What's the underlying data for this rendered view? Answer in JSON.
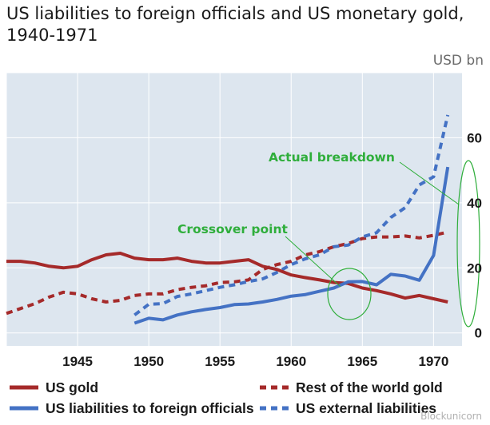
{
  "title": "US liabilities to foreign officials and US monetary gold, 1940-1971",
  "unit": "USD bn",
  "watermark": "Blockunicorn",
  "colors": {
    "plot_bg": "#dde6ef",
    "grid": "#ffffff",
    "red": "#a52a2a",
    "blue": "#4472c4",
    "annotation": "#2fae3b"
  },
  "chart_data": {
    "type": "line",
    "xlabel": "",
    "ylabel": "",
    "xlim": [
      1940,
      1972
    ],
    "ylim": [
      -4,
      80
    ],
    "x_ticks": [
      1945,
      1950,
      1955,
      1960,
      1965,
      1970
    ],
    "y_ticks": [
      0,
      20,
      40,
      60
    ],
    "grid": true,
    "legend_position": "bottom",
    "series": [
      {
        "name": "US gold",
        "style": "solid",
        "color": "#a52a2a",
        "x": [
          1940,
          1941,
          1942,
          1943,
          1944,
          1945,
          1946,
          1947,
          1948,
          1949,
          1950,
          1951,
          1952,
          1953,
          1954,
          1955,
          1956,
          1957,
          1958,
          1959,
          1960,
          1961,
          1962,
          1963,
          1964,
          1965,
          1966,
          1967,
          1968,
          1969,
          1970,
          1971
        ],
        "y": [
          22,
          22,
          21.5,
          20.5,
          20,
          20.5,
          22.5,
          24,
          24.5,
          23,
          22.5,
          22.5,
          23,
          22,
          21.5,
          21.5,
          22,
          22.5,
          20.5,
          19.5,
          17.8,
          17,
          16.3,
          15.5,
          15.2,
          13.8,
          13,
          12,
          10.7,
          11.5,
          10.5,
          9.5
        ]
      },
      {
        "name": "Rest of the world gold",
        "style": "dashed",
        "color": "#a52a2a",
        "x": [
          1940,
          1941,
          1942,
          1943,
          1944,
          1945,
          1946,
          1947,
          1948,
          1949,
          1950,
          1951,
          1952,
          1953,
          1954,
          1955,
          1956,
          1957,
          1958,
          1959,
          1960,
          1961,
          1962,
          1963,
          1964,
          1965,
          1966,
          1967,
          1968,
          1969,
          1970,
          1971
        ],
        "y": [
          6,
          7.5,
          9,
          11,
          12.5,
          12,
          10.5,
          9.5,
          10,
          11.5,
          12,
          12,
          13.3,
          14,
          14.5,
          15.5,
          15.7,
          16.3,
          19.5,
          21,
          22,
          24,
          25,
          26.5,
          27.5,
          29,
          29.5,
          29.5,
          29.8,
          29.2,
          30,
          31
        ]
      },
      {
        "name": "US liabilities to foreign officials",
        "style": "solid",
        "color": "#4472c4",
        "x": [
          1949,
          1950,
          1951,
          1952,
          1953,
          1954,
          1955,
          1956,
          1957,
          1958,
          1959,
          1960,
          1961,
          1962,
          1963,
          1964,
          1965,
          1966,
          1967,
          1968,
          1969,
          1970,
          1971
        ],
        "y": [
          3,
          4.5,
          4,
          5.5,
          6.5,
          7.2,
          7.8,
          8.7,
          8.9,
          9.5,
          10.3,
          11.3,
          11.8,
          12.8,
          13.8,
          15.7,
          15.8,
          14.8,
          18,
          17.5,
          16.2,
          23.8,
          51
        ]
      },
      {
        "name": "US external liabilities",
        "style": "dashed",
        "color": "#4472c4",
        "x": [
          1949,
          1950,
          1951,
          1952,
          1953,
          1954,
          1955,
          1956,
          1957,
          1958,
          1959,
          1960,
          1961,
          1962,
          1963,
          1964,
          1965,
          1966,
          1967,
          1968,
          1969,
          1970,
          1971
        ],
        "y": [
          5.5,
          8.8,
          9,
          11.2,
          12,
          13,
          14,
          14.8,
          15.8,
          16.6,
          18.6,
          21,
          22.8,
          24,
          26.5,
          27,
          29.5,
          30.8,
          35.5,
          38.5,
          45.5,
          48,
          67
        ]
      }
    ],
    "annotations": [
      {
        "label": "Crossover point",
        "target": [
          1963.5,
          15
        ]
      },
      {
        "label": "Actual breakdown",
        "target": [
          1971,
          31
        ]
      }
    ]
  },
  "legend": [
    {
      "label": "US gold",
      "style": "solid",
      "color": "#a52a2a"
    },
    {
      "label": "Rest of the world gold",
      "style": "dashed",
      "color": "#a52a2a"
    },
    {
      "label": "US liabilities to foreign officials",
      "style": "solid",
      "color": "#4472c4"
    },
    {
      "label": "US external liabilities",
      "style": "dashed",
      "color": "#4472c4"
    }
  ]
}
